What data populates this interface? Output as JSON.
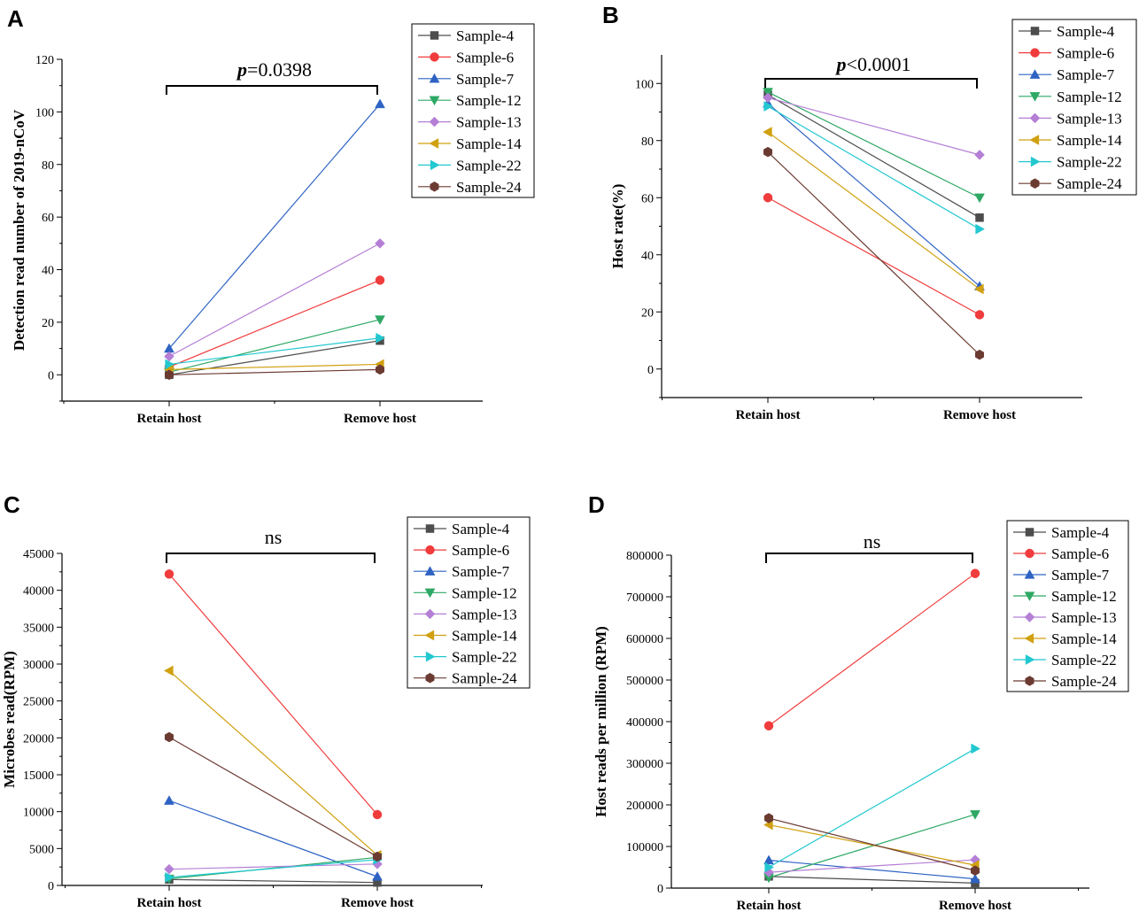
{
  "figure": {
    "categories": [
      "Retain host",
      "Remove host"
    ],
    "legend_entries": [
      "Sample-4",
      "Sample-6",
      "Sample-7",
      "Sample-12",
      "Sample-13",
      "Sample-14",
      "Sample-22",
      "Sample-24"
    ],
    "colors": {
      "Sample-4": "#4d4d4d",
      "Sample-6": "#f03c3c",
      "Sample-7": "#2e63c4",
      "Sample-12": "#2ea865",
      "Sample-13": "#b57fd6",
      "Sample-14": "#d0a010",
      "Sample-22": "#22c8d0",
      "Sample-24": "#6b3b32"
    },
    "markers": {
      "Sample-4": "square",
      "Sample-6": "circle",
      "Sample-7": "triangle-up",
      "Sample-12": "triangle-down",
      "Sample-13": "diamond",
      "Sample-14": "triangle-left",
      "Sample-22": "triangle-right",
      "Sample-24": "hexagon"
    }
  },
  "chart_data": [
    {
      "panel": "A",
      "type": "line",
      "categories": [
        "Retain host",
        "Remove host"
      ],
      "ylabel": "Detection read number of 2019-nCoV",
      "ylim": [
        -10,
        120
      ],
      "yticks": [
        0,
        20,
        40,
        60,
        80,
        100,
        120
      ],
      "ytick_labels": [
        "0",
        "20",
        "40",
        "60",
        "80",
        "100",
        "120"
      ],
      "significance": {
        "prefix": "p",
        "text": "=0.0398"
      },
      "series": [
        {
          "name": "Sample-4",
          "values": [
            0,
            13
          ]
        },
        {
          "name": "Sample-6",
          "values": [
            3,
            36
          ]
        },
        {
          "name": "Sample-7",
          "values": [
            10,
            103
          ]
        },
        {
          "name": "Sample-12",
          "values": [
            1,
            21
          ]
        },
        {
          "name": "Sample-13",
          "values": [
            7,
            50
          ]
        },
        {
          "name": "Sample-14",
          "values": [
            2,
            4
          ]
        },
        {
          "name": "Sample-22",
          "values": [
            4,
            14
          ]
        },
        {
          "name": "Sample-24",
          "values": [
            0,
            2
          ]
        }
      ]
    },
    {
      "panel": "B",
      "type": "line",
      "categories": [
        "Retain host",
        "Remove host"
      ],
      "ylabel": "Host rate(%)",
      "ylim": [
        -10,
        110
      ],
      "yticks": [
        0,
        20,
        40,
        60,
        80,
        100
      ],
      "ytick_labels": [
        "0",
        "20",
        "40",
        "60",
        "80",
        "100"
      ],
      "significance": {
        "prefix": "p",
        "text": "<0.0001"
      },
      "series": [
        {
          "name": "Sample-4",
          "values": [
            96,
            53
          ]
        },
        {
          "name": "Sample-6",
          "values": [
            60,
            19
          ]
        },
        {
          "name": "Sample-7",
          "values": [
            93,
            29
          ]
        },
        {
          "name": "Sample-12",
          "values": [
            97,
            60
          ]
        },
        {
          "name": "Sample-13",
          "values": [
            95,
            75
          ]
        },
        {
          "name": "Sample-14",
          "values": [
            83,
            28
          ]
        },
        {
          "name": "Sample-22",
          "values": [
            92,
            49
          ]
        },
        {
          "name": "Sample-24",
          "values": [
            76,
            5
          ]
        }
      ]
    },
    {
      "panel": "C",
      "type": "line",
      "categories": [
        "Retain host",
        "Remove host"
      ],
      "ylabel": "Microbes read(RPM)",
      "ylim": [
        0,
        45000
      ],
      "yticks": [
        0,
        5000,
        10000,
        15000,
        20000,
        25000,
        30000,
        35000,
        40000,
        45000
      ],
      "ytick_labels": [
        "0",
        "5000",
        "10000",
        "15000",
        "20000",
        "25000",
        "30000",
        "35000",
        "40000",
        "45000"
      ],
      "significance": {
        "prefix": "",
        "text": "ns"
      },
      "series": [
        {
          "name": "Sample-4",
          "values": [
            800,
            400
          ]
        },
        {
          "name": "Sample-6",
          "values": [
            42200,
            9600
          ]
        },
        {
          "name": "Sample-7",
          "values": [
            11500,
            1200
          ]
        },
        {
          "name": "Sample-12",
          "values": [
            900,
            3800
          ]
        },
        {
          "name": "Sample-13",
          "values": [
            2200,
            2900
          ]
        },
        {
          "name": "Sample-14",
          "values": [
            29100,
            4100
          ]
        },
        {
          "name": "Sample-22",
          "values": [
            1100,
            3500
          ]
        },
        {
          "name": "Sample-24",
          "values": [
            20100,
            3900
          ]
        }
      ]
    },
    {
      "panel": "D",
      "type": "line",
      "categories": [
        "Retain host",
        "Remove host"
      ],
      "ylabel": "Host reads per million (RPM)",
      "ylim": [
        0,
        800000
      ],
      "yticks": [
        0,
        100000,
        200000,
        300000,
        400000,
        500000,
        600000,
        700000,
        800000
      ],
      "ytick_labels": [
        "0",
        "100000",
        "200000",
        "300000",
        "400000",
        "500000",
        "600000",
        "700000",
        "800000"
      ],
      "significance": {
        "prefix": "",
        "text": "ns"
      },
      "series": [
        {
          "name": "Sample-4",
          "values": [
            28000,
            12000
          ]
        },
        {
          "name": "Sample-6",
          "values": [
            390000,
            756000
          ]
        },
        {
          "name": "Sample-7",
          "values": [
            67000,
            22000
          ]
        },
        {
          "name": "Sample-12",
          "values": [
            25000,
            177000
          ]
        },
        {
          "name": "Sample-13",
          "values": [
            38000,
            68000
          ]
        },
        {
          "name": "Sample-14",
          "values": [
            152000,
            55000
          ]
        },
        {
          "name": "Sample-22",
          "values": [
            50000,
            335000
          ]
        },
        {
          "name": "Sample-24",
          "values": [
            168000,
            42000
          ]
        }
      ]
    }
  ]
}
